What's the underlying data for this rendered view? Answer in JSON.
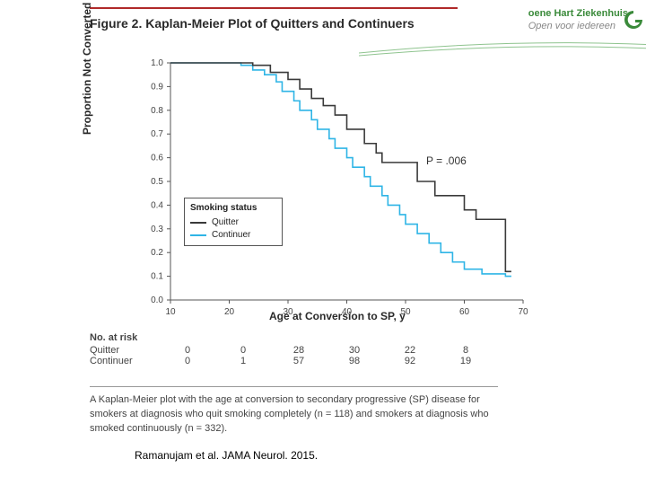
{
  "banner": {
    "title": "Figure 2. Kaplan-Meier Plot of Quitters and Continuers",
    "rule_color": "#b02a2a",
    "hospital_name": "oene Hart Ziekenhuis",
    "hospital_slogan": "Open voor iedereen",
    "hospital_name_color": "#3a8a3a",
    "hospital_slogan_color": "#888888"
  },
  "chart": {
    "type": "kaplan_meier_step",
    "ylabel": "Proportion Not Converted",
    "xlabel": "Age at Conversion to SP, y",
    "xlim": [
      10,
      70
    ],
    "ylim": [
      0,
      1.0
    ],
    "xtick_step": 10,
    "ytick_step": 0.1,
    "xticks": [
      10,
      20,
      30,
      40,
      50,
      60,
      70
    ],
    "yticks": [
      0,
      0.1,
      0.2,
      0.3,
      0.4,
      0.5,
      0.6,
      0.7,
      0.8,
      0.9,
      1.0
    ],
    "axis_color": "#555555",
    "tick_label_fontsize": 10,
    "label_fontsize": 12,
    "p_value_label": "P = .006",
    "legend": {
      "title": "Smoking status",
      "items": [
        {
          "label": "Quitter",
          "color": "#3a3a3a"
        },
        {
          "label": "Continuer",
          "color": "#2fb5e6"
        }
      ]
    },
    "series": [
      {
        "name": "Continuer",
        "color": "#2fb5e6",
        "line_width": 1.6,
        "points": [
          [
            10,
            1.0
          ],
          [
            22,
            1.0
          ],
          [
            22,
            0.99
          ],
          [
            24,
            0.99
          ],
          [
            24,
            0.97
          ],
          [
            26,
            0.97
          ],
          [
            26,
            0.95
          ],
          [
            28,
            0.95
          ],
          [
            28,
            0.92
          ],
          [
            29,
            0.92
          ],
          [
            29,
            0.88
          ],
          [
            31,
            0.88
          ],
          [
            31,
            0.84
          ],
          [
            32,
            0.84
          ],
          [
            32,
            0.8
          ],
          [
            34,
            0.8
          ],
          [
            34,
            0.76
          ],
          [
            35,
            0.76
          ],
          [
            35,
            0.72
          ],
          [
            37,
            0.72
          ],
          [
            37,
            0.68
          ],
          [
            38,
            0.68
          ],
          [
            38,
            0.64
          ],
          [
            40,
            0.64
          ],
          [
            40,
            0.6
          ],
          [
            41,
            0.6
          ],
          [
            41,
            0.56
          ],
          [
            43,
            0.56
          ],
          [
            43,
            0.52
          ],
          [
            44,
            0.52
          ],
          [
            44,
            0.48
          ],
          [
            46,
            0.48
          ],
          [
            46,
            0.44
          ],
          [
            47,
            0.44
          ],
          [
            47,
            0.4
          ],
          [
            49,
            0.4
          ],
          [
            49,
            0.36
          ],
          [
            50,
            0.36
          ],
          [
            50,
            0.32
          ],
          [
            52,
            0.32
          ],
          [
            52,
            0.28
          ],
          [
            54,
            0.28
          ],
          [
            54,
            0.24
          ],
          [
            56,
            0.24
          ],
          [
            56,
            0.2
          ],
          [
            58,
            0.2
          ],
          [
            58,
            0.16
          ],
          [
            60,
            0.16
          ],
          [
            60,
            0.13
          ],
          [
            63,
            0.13
          ],
          [
            63,
            0.11
          ],
          [
            67,
            0.11
          ],
          [
            67,
            0.1
          ],
          [
            68,
            0.1
          ]
        ]
      },
      {
        "name": "Quitter",
        "color": "#3a3a3a",
        "line_width": 1.6,
        "points": [
          [
            10,
            1.0
          ],
          [
            24,
            1.0
          ],
          [
            24,
            0.99
          ],
          [
            27,
            0.99
          ],
          [
            27,
            0.96
          ],
          [
            30,
            0.96
          ],
          [
            30,
            0.93
          ],
          [
            32,
            0.93
          ],
          [
            32,
            0.89
          ],
          [
            34,
            0.89
          ],
          [
            34,
            0.85
          ],
          [
            36,
            0.85
          ],
          [
            36,
            0.82
          ],
          [
            38,
            0.82
          ],
          [
            38,
            0.78
          ],
          [
            40,
            0.78
          ],
          [
            40,
            0.72
          ],
          [
            43,
            0.72
          ],
          [
            43,
            0.66
          ],
          [
            45,
            0.66
          ],
          [
            45,
            0.62
          ],
          [
            46,
            0.62
          ],
          [
            46,
            0.58
          ],
          [
            52,
            0.58
          ],
          [
            52,
            0.5
          ],
          [
            55,
            0.5
          ],
          [
            55,
            0.44
          ],
          [
            60,
            0.44
          ],
          [
            60,
            0.38
          ],
          [
            62,
            0.38
          ],
          [
            62,
            0.34
          ],
          [
            67,
            0.34
          ],
          [
            67,
            0.12
          ],
          [
            68,
            0.12
          ]
        ]
      }
    ]
  },
  "risk_table": {
    "header": "No. at risk",
    "columns": [
      10,
      20,
      30,
      40,
      50,
      60
    ],
    "rows": [
      {
        "label": "Quitter",
        "values": [
          0,
          0,
          28,
          30,
          22,
          8
        ]
      },
      {
        "label": "Continuer",
        "values": [
          0,
          1,
          57,
          98,
          92,
          19
        ]
      }
    ]
  },
  "caption": "A Kaplan-Meier plot with the age at conversion to secondary progressive (SP) disease for smokers at diagnosis who quit smoking completely (n = 118) and smokers at diagnosis who smoked continuously (n = 332).",
  "citation": "Ramanujam et al. JAMA Neurol. 2015."
}
